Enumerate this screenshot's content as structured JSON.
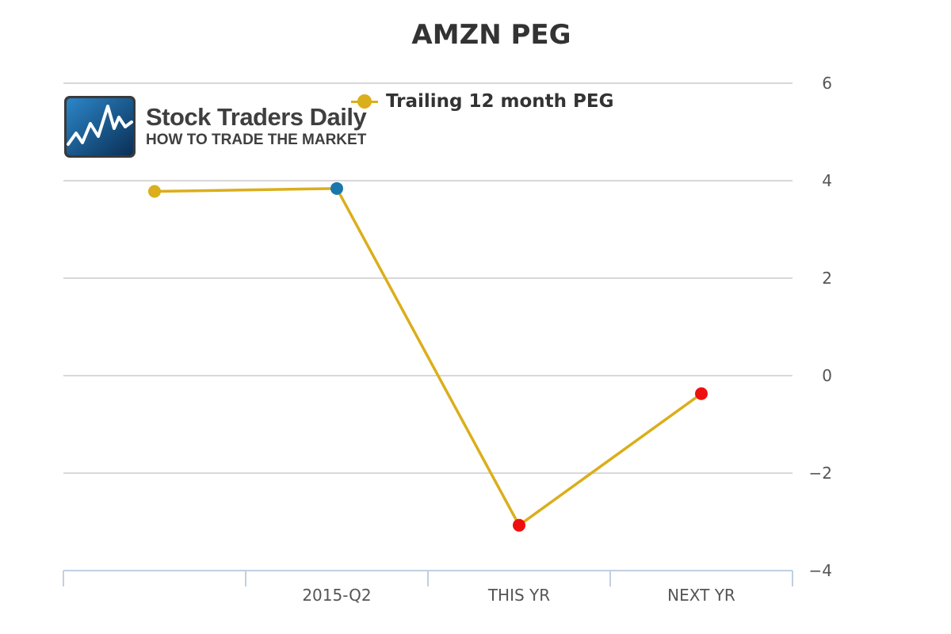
{
  "chart_data": {
    "type": "line",
    "title": "AMZN PEG",
    "categories": [
      "",
      "2015-Q2",
      "THIS YR",
      "NEXT YR"
    ],
    "series": [
      {
        "name": "Trailing 12 month PEG",
        "color": "#dbae1b",
        "values": [
          3.78,
          3.84,
          -3.07,
          -0.37
        ],
        "point_colors": [
          "#dbae1b",
          "#1a77ad",
          "#ee0f0f",
          "#ee0f0f"
        ]
      }
    ],
    "ylim": [
      -4,
      6
    ],
    "yticks": [
      6,
      4,
      2,
      0,
      -2,
      -4
    ],
    "yaxis_side": "right",
    "legend_position": "top-center",
    "grid": true
  },
  "logo": {
    "name": "Stock Traders Daily",
    "tagline": "HOW TO TRADE THE MARKET"
  }
}
